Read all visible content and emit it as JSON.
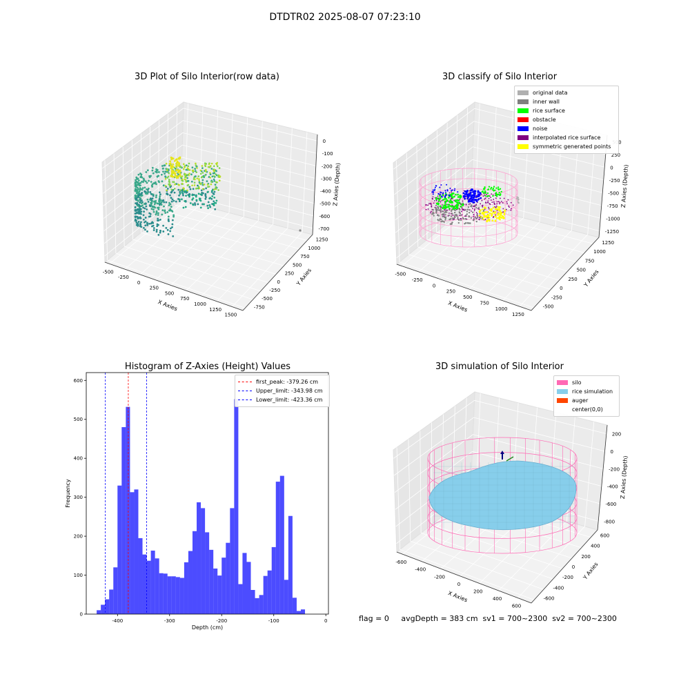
{
  "page_title": "DTDTR02 2025-08-07 07:23:10",
  "panels": {
    "raw": {
      "title": "3D Plot of Silo Interior(row data)",
      "xlabel": "X Axies",
      "ylabel": "Y Axies",
      "zlabel": "Z Axies (Depth)",
      "xticks": [
        "-500",
        "-250",
        "0",
        "250",
        "500",
        "750",
        "1000",
        "1250",
        "1500"
      ],
      "yticks": [
        "1250",
        "1000",
        "750",
        "500",
        "250",
        "0",
        "-250",
        "-500",
        "-750"
      ],
      "zticks": [
        "0",
        "-100",
        "-200",
        "-300",
        "-400",
        "-500",
        "-600",
        "-700"
      ]
    },
    "classify": {
      "title": "3D classify of Silo Interior",
      "xlabel": "X Axies",
      "ylabel": "Y Axies",
      "zlabel": "Z Axies (Depth)",
      "xticks": [
        "-500",
        "-250",
        "0",
        "250",
        "500",
        "750",
        "1000",
        "1250"
      ],
      "yticks": [
        "1250",
        "1000",
        "750",
        "500",
        "250",
        "0",
        "-250",
        "-500"
      ],
      "zticks": [
        "500",
        "250",
        "0",
        "-250",
        "-500",
        "-750",
        "-1000",
        "-1250"
      ],
      "legend": [
        {
          "label": "original data",
          "color": "#b0b0b0"
        },
        {
          "label": "inner wall",
          "color": "#808080"
        },
        {
          "label": "rice surface",
          "color": "#00ff00"
        },
        {
          "label": "obstacle",
          "color": "#ff0000"
        },
        {
          "label": "noise",
          "color": "#0000ff"
        },
        {
          "label": "interpolated rice surface",
          "color": "#800080"
        },
        {
          "label": "symmetric generated points",
          "color": "#ffff00"
        }
      ]
    },
    "simulation": {
      "title": "3D simulation of Silo Interior",
      "xlabel": "X Axies",
      "ylabel": "Y Axies",
      "zlabel": "Z Axies (Depth)",
      "xticks": [
        "-600",
        "-400",
        "-200",
        "0",
        "200",
        "400",
        "600"
      ],
      "yticks": [
        "600",
        "400",
        "200",
        "0",
        "-200",
        "-400",
        "-600"
      ],
      "zticks": [
        "200",
        "0",
        "-200",
        "-400",
        "-600",
        "-800"
      ],
      "legend": [
        {
          "label": "silo",
          "color": "#ff69b4"
        },
        {
          "label": "rice simulation",
          "color": "#87ceeb"
        },
        {
          "label": "auger",
          "color": "#ff4500"
        },
        {
          "label": "center(0,0)",
          "color": ""
        }
      ]
    }
  },
  "status_line": "flag = 0     avgDepth = 383 cm  sv1 = 700~2300  sv2 = 700~2300",
  "chart_data": {
    "type": "bar",
    "title": "Histogram of Z-Axies (Height) Values",
    "xlabel": "Depth (cm)",
    "ylabel": "Frequency",
    "xlim": [
      -460,
      5
    ],
    "ylim": [
      0,
      620
    ],
    "xticks": [
      -400,
      -300,
      -200,
      -100,
      0
    ],
    "yticks": [
      0,
      100,
      200,
      300,
      400,
      500,
      600
    ],
    "bin_width": 8,
    "x": [
      -436,
      -428,
      -420,
      -412,
      -404,
      -396,
      -388,
      -380,
      -372,
      -364,
      -356,
      -348,
      -340,
      -332,
      -324,
      -316,
      -308,
      -300,
      -292,
      -284,
      -276,
      -268,
      -260,
      -252,
      -244,
      -236,
      -228,
      -220,
      -212,
      -204,
      -196,
      -188,
      -180,
      -172,
      -164,
      -156,
      -148,
      -140,
      -132,
      -124,
      -116,
      -108,
      -100,
      -92,
      -84,
      -76,
      -68,
      -60,
      -52,
      -44,
      -36,
      -28,
      -20,
      -12,
      -4
    ],
    "values": [
      10,
      24,
      38,
      63,
      120,
      330,
      480,
      532,
      313,
      320,
      195,
      153,
      137,
      163,
      143,
      105,
      104,
      97,
      97,
      95,
      93,
      133,
      162,
      213,
      287,
      272,
      210,
      165,
      117,
      99,
      145,
      183,
      272,
      552,
      77,
      157,
      134,
      62,
      41,
      49,
      98,
      112,
      172,
      340,
      355,
      88,
      252,
      42,
      8,
      12,
      0,
      0,
      0,
      0,
      0
    ],
    "bar_color": "#0000ff",
    "vlines": [
      {
        "label": "first_peak: -379.26 cm",
        "x": -379.26,
        "color": "#ff0000"
      },
      {
        "label": "Upper_limit: -343.98 cm",
        "x": -343.98,
        "color": "#0000ff"
      },
      {
        "label": "Lower_limit: -423.36 cm",
        "x": -423.36,
        "color": "#0000ff"
      }
    ],
    "legend_position": "top-right"
  }
}
